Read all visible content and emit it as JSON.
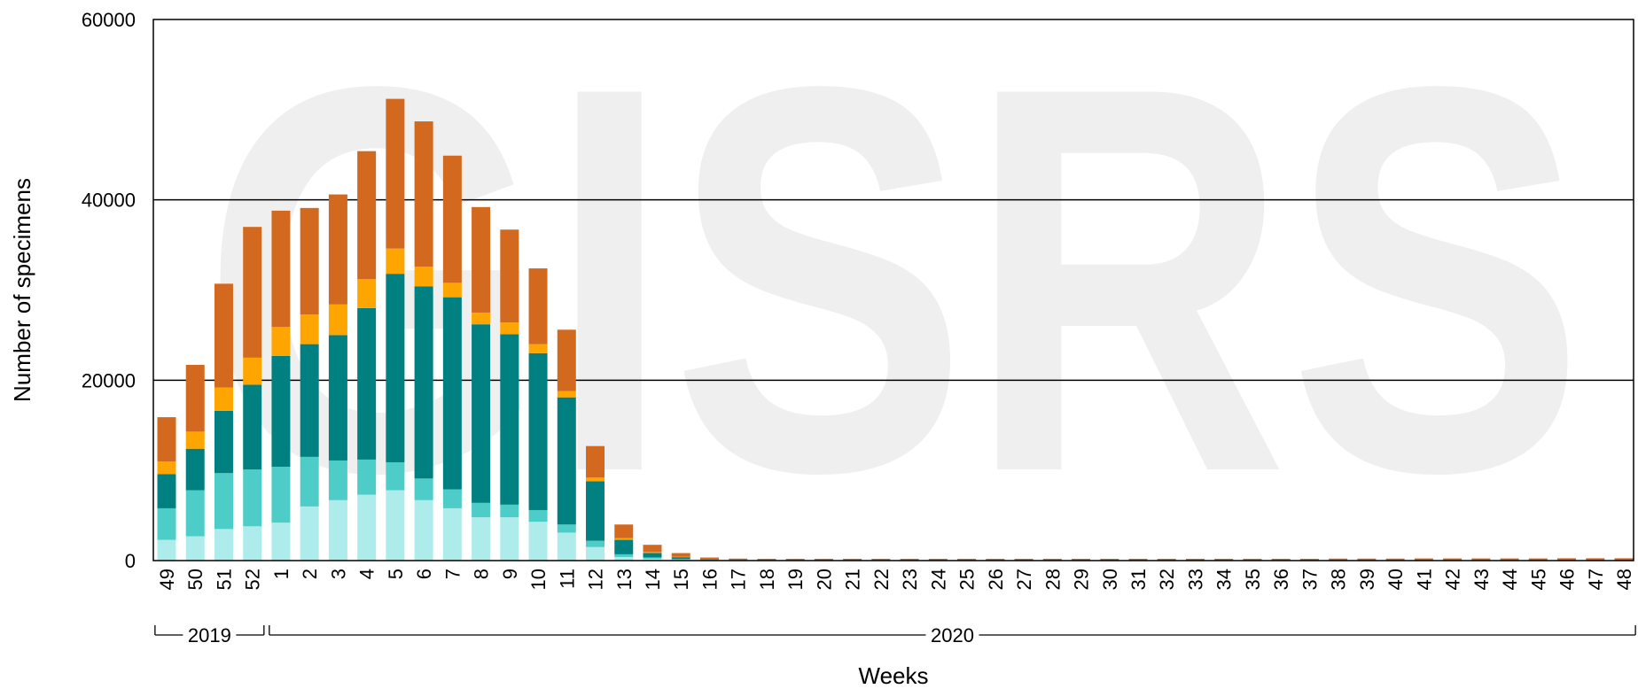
{
  "chart_data": {
    "type": "bar",
    "stacked": true,
    "watermark": "GISRS",
    "xlabel": "Weeks",
    "ylabel": "Number of specimens",
    "ylim": [
      0,
      60000
    ],
    "yticks": [
      0,
      20000,
      40000,
      60000
    ],
    "grid": true,
    "categories": [
      "49",
      "50",
      "51",
      "52",
      "1",
      "2",
      "3",
      "4",
      "5",
      "6",
      "7",
      "8",
      "9",
      "10",
      "11",
      "12",
      "13",
      "14",
      "15",
      "16",
      "17",
      "18",
      "19",
      "20",
      "21",
      "22",
      "23",
      "24",
      "25",
      "26",
      "27",
      "28",
      "29",
      "30",
      "31",
      "32",
      "33",
      "34",
      "35",
      "36",
      "37",
      "38",
      "39",
      "40",
      "41",
      "42",
      "43",
      "44",
      "45",
      "46",
      "47",
      "48"
    ],
    "year_groups": [
      {
        "label": "2019",
        "start": 0,
        "end": 3
      },
      {
        "label": "2020",
        "start": 4,
        "end": 51
      }
    ],
    "colors": [
      "#aeeceb",
      "#4ecdc8",
      "#008080",
      "#ffa500",
      "#d2691e"
    ],
    "series": [
      {
        "values": [
          2300,
          2700,
          3500,
          3800,
          4200,
          6000,
          6700,
          7300,
          7800,
          6700,
          5800,
          4800,
          4800,
          4300,
          3100,
          1500,
          400,
          200,
          100,
          50,
          30,
          30,
          30,
          20,
          20,
          20,
          20,
          20,
          20,
          20,
          20,
          20,
          20,
          20,
          20,
          20,
          20,
          20,
          20,
          20,
          20,
          20,
          20,
          20,
          20,
          20,
          20,
          20,
          20,
          20,
          20,
          20
        ]
      },
      {
        "values": [
          3500,
          5100,
          6200,
          6300,
          6200,
          5500,
          4400,
          3900,
          3100,
          2400,
          2100,
          1600,
          1400,
          1300,
          900,
          700,
          300,
          150,
          80,
          40,
          20,
          10,
          10,
          10,
          10,
          10,
          10,
          10,
          10,
          10,
          10,
          10,
          10,
          10,
          10,
          10,
          10,
          10,
          10,
          10,
          10,
          10,
          10,
          10,
          10,
          10,
          10,
          10,
          10,
          10,
          10,
          10
        ]
      },
      {
        "values": [
          3800,
          4600,
          6900,
          9400,
          12300,
          12500,
          13900,
          16800,
          20900,
          21300,
          21300,
          19800,
          18900,
          17400,
          14100,
          6600,
          1600,
          500,
          200,
          60,
          20,
          10,
          10,
          10,
          10,
          10,
          10,
          10,
          10,
          10,
          10,
          10,
          10,
          10,
          10,
          10,
          10,
          10,
          10,
          10,
          10,
          10,
          10,
          10,
          10,
          10,
          10,
          10,
          10,
          10,
          10,
          10
        ]
      },
      {
        "values": [
          1400,
          1900,
          2600,
          3000,
          3200,
          3300,
          3400,
          3200,
          2800,
          2200,
          1600,
          1300,
          1300,
          1000,
          700,
          400,
          200,
          100,
          50,
          20,
          10,
          5,
          5,
          5,
          5,
          5,
          5,
          5,
          5,
          5,
          5,
          5,
          5,
          5,
          5,
          5,
          5,
          5,
          5,
          5,
          5,
          5,
          5,
          5,
          5,
          5,
          5,
          5,
          5,
          5,
          5,
          5
        ]
      },
      {
        "values": [
          4900,
          7400,
          11500,
          14500,
          12900,
          11800,
          12200,
          14200,
          16600,
          16100,
          14100,
          11700,
          10300,
          8400,
          6800,
          3500,
          1500,
          800,
          400,
          170,
          140,
          145,
          145,
          155,
          155,
          155,
          155,
          155,
          155,
          155,
          155,
          155,
          155,
          155,
          155,
          155,
          155,
          155,
          155,
          155,
          155,
          175,
          175,
          175,
          195,
          195,
          195,
          195,
          195,
          215,
          215,
          215
        ]
      }
    ]
  }
}
